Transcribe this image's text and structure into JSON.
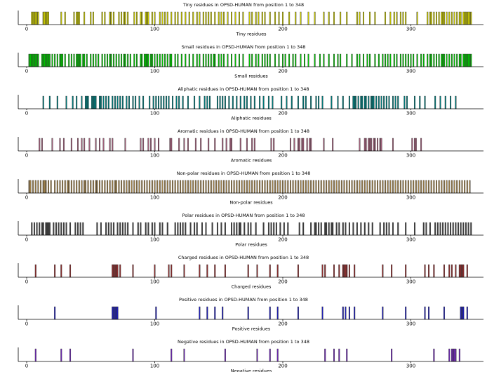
{
  "chart_data": [
    {
      "type": "bar",
      "title": "Tiny residues in OPSD-HUMAN from position 1 to 348",
      "xlabel": "Tiny residues",
      "color": "#c8c800",
      "xlim": [
        1,
        348
      ],
      "xticks": [
        "0",
        "100",
        "200",
        "300"
      ],
      "x": [
        4,
        5,
        6,
        7,
        8,
        9,
        13,
        14,
        15,
        16,
        17,
        27,
        30,
        37,
        39,
        40,
        41,
        45,
        50,
        52,
        59,
        61,
        65,
        66,
        68,
        72,
        74,
        76,
        77,
        79,
        84,
        86,
        89,
        90,
        93,
        94,
        95,
        98,
        100,
        104,
        106,
        108,
        110,
        113,
        116,
        118,
        121,
        124,
        127,
        130,
        133,
        135,
        138,
        140,
        142,
        144,
        147,
        150,
        152,
        154,
        157,
        160,
        163,
        166,
        169,
        174,
        176,
        179,
        181,
        184,
        186,
        190,
        194,
        197,
        200,
        205,
        210,
        214,
        220,
        225,
        232,
        236,
        240,
        245,
        250,
        258,
        260,
        263,
        268,
        272,
        280,
        284,
        287,
        289,
        292,
        294,
        296,
        305,
        313,
        315,
        316,
        318,
        320,
        322,
        324,
        325,
        326,
        328,
        330,
        332,
        334,
        336,
        338,
        339,
        341,
        342,
        343,
        344,
        345,
        346,
        347
      ],
      "values": "1 per position"
    },
    {
      "type": "bar",
      "title": "Small residues in OPSD-HUMAN from position 1 to 348",
      "xlabel": "Small residues",
      "color": "#00c000",
      "xlim": [
        1,
        348
      ],
      "xticks": [
        "0",
        "100",
        "200",
        "300"
      ],
      "x": [
        2,
        3,
        4,
        5,
        6,
        7,
        8,
        9,
        12,
        13,
        14,
        15,
        16,
        17,
        18,
        20,
        22,
        24,
        26,
        27,
        28,
        30,
        33,
        35,
        37,
        39,
        40,
        41,
        42,
        44,
        45,
        47,
        50,
        52,
        54,
        56,
        59,
        61,
        63,
        65,
        66,
        68,
        70,
        72,
        74,
        76,
        77,
        79,
        81,
        84,
        86,
        89,
        90,
        92,
        93,
        94,
        95,
        97,
        98,
        100,
        102,
        104,
        106,
        108,
        110,
        112,
        113,
        116,
        118,
        121,
        124,
        127,
        130,
        133,
        135,
        138,
        140,
        142,
        144,
        146,
        147,
        150,
        152,
        154,
        157,
        160,
        163,
        166,
        169,
        174,
        176,
        179,
        181,
        184,
        186,
        188,
        190,
        194,
        197,
        200,
        202,
        205,
        208,
        210,
        214,
        217,
        220,
        225,
        229,
        232,
        236,
        240,
        243,
        245,
        250,
        254,
        258,
        260,
        263,
        266,
        268,
        272,
        275,
        278,
        280,
        282,
        284,
        287,
        289,
        292,
        294,
        296,
        298,
        300,
        302,
        305,
        308,
        310,
        313,
        315,
        316,
        318,
        320,
        322,
        324,
        325,
        326,
        328,
        330,
        332,
        334,
        336,
        338,
        339,
        341,
        342,
        343,
        344,
        345,
        346,
        347
      ],
      "values": "1 per position"
    },
    {
      "type": "bar",
      "title": "Aliphatic residues in OPSD-HUMAN from position 1 to 348",
      "xlabel": "Aliphatic residues",
      "color": "#007878",
      "xlim": [
        1,
        348
      ],
      "xticks": [
        "0",
        "100",
        "200",
        "300"
      ],
      "x": [
        13,
        18,
        24,
        31,
        36,
        39,
        43,
        46,
        47,
        48,
        51,
        52,
        53,
        54,
        57,
        58,
        60,
        62,
        64,
        67,
        69,
        71,
        73,
        75,
        78,
        80,
        83,
        85,
        88,
        91,
        96,
        99,
        101,
        103,
        105,
        107,
        109,
        111,
        114,
        117,
        119,
        122,
        126,
        131,
        135,
        139,
        141,
        143,
        149,
        151,
        153,
        155,
        158,
        161,
        164,
        167,
        170,
        172,
        175,
        178,
        182,
        185,
        189,
        192,
        199,
        203,
        207,
        212,
        216,
        218,
        222,
        226,
        228,
        231,
        238,
        243,
        247,
        252,
        255,
        256,
        257,
        259,
        261,
        262,
        264,
        265,
        267,
        269,
        270,
        271,
        273,
        275,
        277,
        279,
        281,
        283,
        286,
        288,
        290,
        295,
        297,
        303,
        307,
        311,
        319,
        323,
        327,
        331,
        335
      ],
      "values": "1 per position"
    },
    {
      "type": "bar",
      "title": "Aromatic residues in OPSD-HUMAN from position 1 to 348",
      "xlabel": "Aromatic residues",
      "color": "#a0607a",
      "xlim": [
        1,
        348
      ],
      "xticks": [
        "0",
        "100",
        "200",
        "300"
      ],
      "x": [
        10,
        12,
        20,
        26,
        29,
        35,
        40,
        43,
        45,
        49,
        54,
        57,
        60,
        65,
        67,
        77,
        89,
        91,
        95,
        97,
        100,
        103,
        103,
        112,
        113,
        119,
        123,
        126,
        132,
        136,
        142,
        147,
        153,
        156,
        159,
        160,
        167,
        172,
        176,
        178,
        191,
        193,
        206,
        209,
        212,
        213,
        215,
        216,
        219,
        221,
        222,
        232,
        239,
        260,
        264,
        265,
        267,
        268,
        269,
        271,
        272,
        274,
        276,
        277,
        286,
        301,
        303,
        304,
        308
      ],
      "values": "1 per position"
    },
    {
      "type": "bar",
      "title": "Non-polar residues in OPSD-HUMAN from position 1 to 348",
      "xlabel": "Non-polar residues",
      "color": "#a0824b",
      "xlim": [
        1,
        348
      ],
      "xticks": [
        "0",
        "100",
        "200",
        "300"
      ],
      "x": [
        2,
        3,
        5,
        7,
        9,
        11,
        13,
        14,
        15,
        17,
        19,
        22,
        24,
        26,
        28,
        30,
        32,
        33,
        35,
        37,
        39,
        41,
        43,
        45,
        46,
        48,
        50,
        52,
        54,
        55,
        57,
        59,
        61,
        63,
        65,
        67,
        69,
        70,
        72,
        74,
        76,
        78,
        80,
        82,
        84,
        86,
        88,
        90,
        92,
        94,
        96,
        98,
        100,
        102,
        104,
        106,
        108,
        110,
        112,
        114,
        116,
        118,
        120,
        122,
        124,
        126,
        128,
        130,
        132,
        134,
        136,
        138,
        140,
        142,
        144,
        146,
        148,
        150,
        152,
        154,
        156,
        158,
        160,
        162,
        164,
        166,
        168,
        170,
        172,
        174,
        176,
        178,
        180,
        182,
        184,
        186,
        188,
        190,
        192,
        194,
        196,
        198,
        200,
        202,
        204,
        206,
        208,
        210,
        212,
        214,
        216,
        218,
        220,
        222,
        224,
        226,
        228,
        230,
        232,
        234,
        236,
        238,
        240,
        242,
        244,
        246,
        248,
        250,
        252,
        254,
        256,
        258,
        260,
        262,
        264,
        266,
        268,
        270,
        272,
        274,
        276,
        278,
        280,
        282,
        284,
        286,
        288,
        290,
        292,
        294,
        296,
        298,
        300,
        302,
        304,
        306,
        308,
        310,
        312,
        314,
        316,
        318,
        320,
        322,
        324,
        326,
        328,
        330,
        332,
        334,
        336,
        338,
        340,
        342,
        344,
        346
      ],
      "values": "1 per position"
    },
    {
      "type": "bar",
      "title": "Polar residues in OPSD-HUMAN from position 1 to 348",
      "xlabel": "Polar residues",
      "color": "#404040",
      "xlim": [
        1,
        348
      ],
      "xticks": [
        "0",
        "100",
        "200",
        "300"
      ],
      "x": [
        4,
        6,
        8,
        10,
        12,
        13,
        15,
        16,
        17,
        18,
        21,
        23,
        25,
        27,
        29,
        31,
        34,
        38,
        40,
        42,
        44,
        55,
        58,
        62,
        64,
        66,
        68,
        71,
        73,
        75,
        77,
        79,
        83,
        87,
        89,
        93,
        95,
        98,
        100,
        104,
        106,
        110,
        116,
        118,
        120,
        122,
        124,
        128,
        131,
        133,
        137,
        140,
        145,
        149,
        152,
        155,
        160,
        162,
        164,
        166,
        167,
        170,
        173,
        175,
        179,
        185,
        189,
        191,
        193,
        195,
        198,
        201,
        204,
        213,
        216,
        222,
        225,
        226,
        228,
        230,
        233,
        234,
        236,
        238,
        239,
        242,
        244,
        247,
        249,
        252,
        255,
        258,
        261,
        264,
        267,
        270,
        276,
        279,
        281,
        283,
        286,
        290,
        296,
        303,
        310,
        312,
        315,
        319,
        321,
        323,
        325,
        327,
        329,
        331,
        333,
        335,
        337,
        339,
        341,
        343,
        345,
        347
      ],
      "values": "1 per position"
    },
    {
      "type": "bar",
      "title": "Charged residues in OPSD-HUMAN from position 1 to 348",
      "xlabel": "Charged residues",
      "color": "#8c2d2d",
      "xlim": [
        1,
        348
      ],
      "xticks": [
        "0",
        "100",
        "200",
        "300"
      ],
      "x": [
        7,
        22,
        27,
        34,
        67,
        68,
        69,
        70,
        71,
        73,
        83,
        100,
        111,
        113,
        123,
        135,
        141,
        147,
        155,
        173,
        180,
        190,
        196,
        212,
        231,
        233,
        240,
        244,
        247,
        248,
        249,
        250,
        252,
        256,
        278,
        285,
        296,
        311,
        314,
        318,
        326,
        330,
        332,
        335,
        338,
        339,
        340,
        341,
        344
      ],
      "values": "1 per position"
    },
    {
      "type": "bar",
      "title": "Positive residues in OPSD-HUMAN from position 1 to 348",
      "xlabel": "Positive residues",
      "color": "#1e1eb4",
      "xlim": [
        1,
        348
      ],
      "xticks": [
        "0",
        "100",
        "200",
        "300"
      ],
      "x": [
        22,
        67,
        68,
        69,
        70,
        71,
        101,
        135,
        141,
        147,
        153,
        173,
        190,
        196,
        212,
        231,
        247,
        249,
        252,
        256,
        278,
        296,
        311,
        314,
        326,
        339,
        340,
        341,
        344
      ],
      "values": "1 per position"
    },
    {
      "type": "bar",
      "title": "Negative residues in OPSD-HUMAN from position 1 to 348",
      "xlabel": "Negative residues",
      "color": "#6e28b4",
      "xlim": [
        1,
        348
      ],
      "xticks": [
        "0",
        "100",
        "200",
        "300"
      ],
      "x": [
        7,
        27,
        34,
        83,
        113,
        123,
        155,
        180,
        190,
        196,
        233,
        240,
        244,
        250,
        285,
        318,
        330,
        332,
        333,
        334,
        335,
        338
      ],
      "values": "1 per position"
    }
  ]
}
